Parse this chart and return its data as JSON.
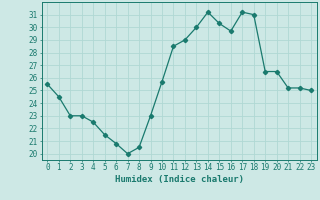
{
  "x": [
    0,
    1,
    2,
    3,
    4,
    5,
    6,
    7,
    8,
    9,
    10,
    11,
    12,
    13,
    14,
    15,
    16,
    17,
    18,
    19,
    20,
    21,
    22,
    23
  ],
  "y": [
    25.5,
    24.5,
    23.0,
    23.0,
    22.5,
    21.5,
    20.8,
    20.0,
    20.5,
    23.0,
    25.7,
    28.5,
    29.0,
    30.0,
    31.2,
    30.3,
    29.7,
    31.2,
    31.0,
    26.5,
    26.5,
    25.2,
    25.2,
    25.0
  ],
  "line_color": "#1a7a6e",
  "marker": "D",
  "marker_size": 2.2,
  "bg_color": "#cde8e5",
  "grid_color": "#b0d8d4",
  "xlabel": "Humidex (Indice chaleur)",
  "ylim": [
    19.5,
    32.0
  ],
  "xlim": [
    -0.5,
    23.5
  ],
  "yticks": [
    20,
    21,
    22,
    23,
    24,
    25,
    26,
    27,
    28,
    29,
    30,
    31
  ],
  "xticks": [
    0,
    1,
    2,
    3,
    4,
    5,
    6,
    7,
    8,
    9,
    10,
    11,
    12,
    13,
    14,
    15,
    16,
    17,
    18,
    19,
    20,
    21,
    22,
    23
  ],
  "tick_color": "#1a7a6e",
  "label_color": "#1a7a6e",
  "spine_color": "#1a7a6e",
  "font_size": 5.5,
  "xlabel_fontsize": 6.5,
  "linewidth": 0.9
}
